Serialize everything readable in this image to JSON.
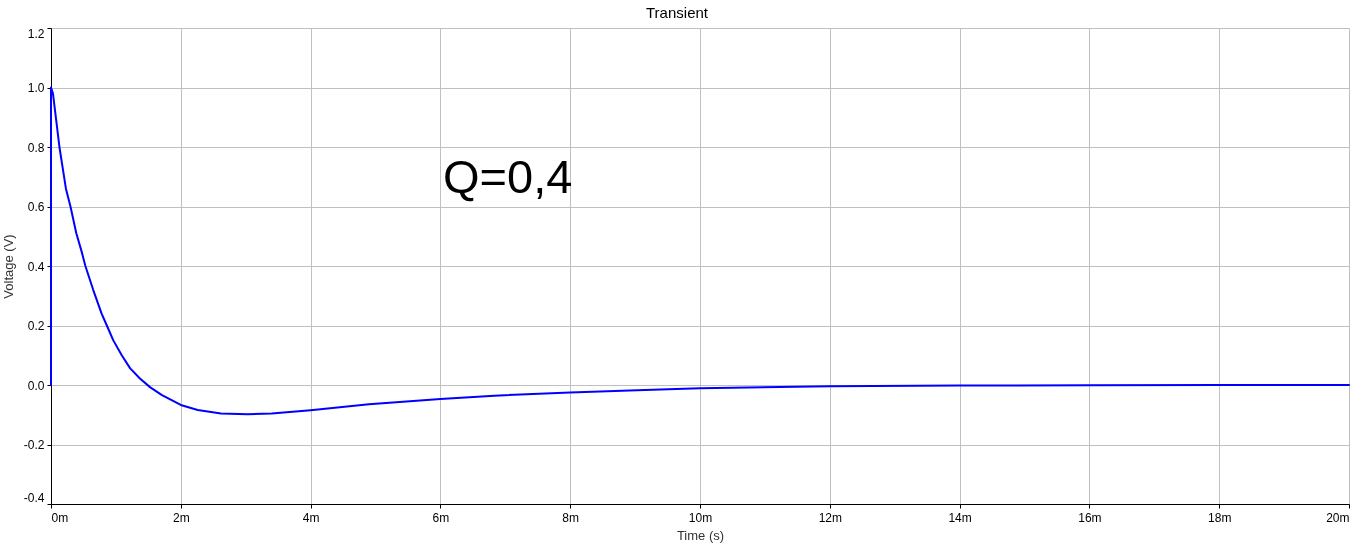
{
  "chart_data": {
    "type": "line",
    "title": "Transient",
    "xlabel": "Time (s)",
    "ylabel": "Voltage (V)",
    "annotations": [
      "Q=0,4"
    ],
    "x": [
      0,
      0,
      0.03,
      0.08,
      0.13,
      0.18,
      0.23,
      0.3,
      0.39,
      0.47,
      0.53,
      0.65,
      0.78,
      0.86,
      0.96,
      1.09,
      1.22,
      1.37,
      1.53,
      1.71,
      2.0,
      2.26,
      2.62,
      3.03,
      3.4,
      4.0,
      4.9,
      6.0,
      6.83,
      8.0,
      9.03,
      10.0,
      11.23,
      12.0,
      14.0,
      16.0,
      18.0,
      20.0
    ],
    "values": [
      0,
      1.0,
      0.98,
      0.89,
      0.8,
      0.73,
      0.66,
      0.6,
      0.51,
      0.45,
      0.4,
      0.32,
      0.24,
      0.2,
      0.15,
      0.1,
      0.056,
      0.022,
      -0.008,
      -0.034,
      -0.067,
      -0.084,
      -0.096,
      -0.098,
      -0.096,
      -0.085,
      -0.065,
      -0.047,
      -0.036,
      -0.025,
      -0.018,
      -0.011,
      -0.007,
      -0.004,
      -0.002,
      -0.001,
      0.0,
      0.0
    ],
    "color": "#0000ff",
    "xlim": [
      0,
      20
    ],
    "xticks": [
      {
        "value": 0,
        "label": "0m"
      },
      {
        "value": 2,
        "label": "2m"
      },
      {
        "value": 4,
        "label": "4m"
      },
      {
        "value": 6,
        "label": "6m"
      },
      {
        "value": 8,
        "label": "8m"
      },
      {
        "value": 10,
        "label": "10m"
      },
      {
        "value": 12,
        "label": "12m"
      },
      {
        "value": 14,
        "label": "14m"
      },
      {
        "value": 16,
        "label": "16m"
      },
      {
        "value": 18,
        "label": "18m"
      },
      {
        "value": 20,
        "label": "20m"
      }
    ],
    "ylim": [
      -0.4,
      1.2
    ],
    "yticks": [
      -0.4,
      -0.2,
      {
        "value": 0,
        "label": "0.0"
      },
      0.2,
      0.4,
      0.6,
      0.8,
      {
        "value": 1,
        "label": "1.0"
      },
      1.2
    ],
    "grid": true
  }
}
